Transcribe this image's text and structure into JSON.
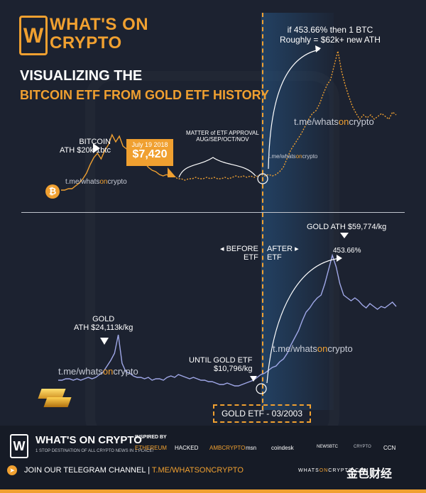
{
  "brand": {
    "logo_letter": "W",
    "name_line1": "WHAT'S ON",
    "name_line2": "CRYPTO"
  },
  "title": {
    "line1": "VISUALIZING THE",
    "line2": "BITCOIN ETF FROM GOLD ETF HISTORY"
  },
  "watermark": {
    "pre": "t.me/whats",
    "mid": "on",
    "post": "crypto"
  },
  "btc_section": {
    "ath_label_1": "BITCOIN",
    "ath_label_2": "ATH $20k/1btc",
    "price_date": "July 19 2018",
    "price_value": "$7,420",
    "approval_1": "MATTER of ETF APPROVAL",
    "approval_2": "AUG/SEP/OCT/NOV",
    "projection_1": "if 453.66% then 1 BTC",
    "projection_2": "Roughly = $62k+ new ATH",
    "icon_letter": "₿"
  },
  "gold_section": {
    "before_1": "◂ BEFORE",
    "before_2": "ETF",
    "after_1": "AFTER ▸",
    "after_2": "ETF",
    "ath_top": "GOLD ATH $59,774/kg",
    "pct": "453.66%",
    "early_ath_1": "GOLD",
    "early_ath_2": "ATH $24,113k/kg",
    "until_1": "UNTIL GOLD ETF",
    "until_2": "$10,796/kg",
    "etf_box": "GOLD ETF - 03/2003"
  },
  "footer": {
    "logo_letter": "W",
    "brand": "WHAT'S ON CRYPTO",
    "tagline": "1 STOP DESTINATION OF ALL CRYPTO NEWS IN 1 PLACE!",
    "inspired": "INSPIRED BY",
    "partners": [
      "ETHEREUM",
      "HACKED",
      "AMBCRYPTO",
      "msn",
      "coindesk",
      "NEWSBTC",
      "CRYPTO",
      "CCN"
    ],
    "join_pre": "JOIN OUR TELEGRAM CHANNEL  |  ",
    "join_link": "T.ME/WHATSONCRYPTO",
    "site_pre": "WHATS",
    "site_mid": "ON",
    "site_post": "CRYPTO.COM",
    "stamp": "金色财经"
  },
  "colors": {
    "accent": "#f0a030",
    "gold_line": "#a0a8e8",
    "background": "#1c2230"
  },
  "chart_data": [
    {
      "type": "line",
      "title": "",
      "xlabel": "",
      "ylabel": "",
      "series": [
        {
          "values": [
            2,
            2,
            3,
            3,
            5,
            7,
            10,
            14,
            20,
            25,
            28,
            24,
            30,
            34,
            41,
            36,
            40,
            33,
            31,
            30,
            27,
            25,
            22,
            21,
            18,
            16,
            15,
            13,
            12,
            13,
            11,
            12,
            10,
            10,
            9,
            10,
            10,
            11,
            10,
            10,
            11,
            10,
            11,
            10,
            10,
            11,
            10,
            11,
            12,
            11,
            12,
            11,
            12,
            11,
            12,
            13,
            12,
            13,
            12,
            13,
            15,
            18,
            24,
            30,
            34,
            38,
            42,
            47,
            52,
            56,
            58,
            63,
            70,
            76,
            80,
            90,
            100,
            86,
            76,
            68,
            61,
            56,
            52,
            55,
            53,
            55,
            52,
            54,
            56,
            54,
            52,
            57,
            55
          ],
          "style": "solid until price marker, dotted projection after"
        }
      ],
      "annotations": [
        "BITCOIN ATH $20k/1btc",
        "July 19 2018 $7,420",
        "MATTER of ETF APPROVAL AUG/SEP/OCT/NOV",
        "if 453.66% then 1 BTC Roughly = $62k+ new ATH"
      ]
    },
    {
      "type": "line",
      "title": "",
      "xlabel": "",
      "ylabel": "",
      "series": [
        {
          "values": [
            12,
            12,
            13,
            13,
            12,
            13,
            12,
            13,
            14,
            13,
            14,
            16,
            18,
            22,
            26,
            31,
            44,
            24,
            18,
            17,
            15,
            14,
            14,
            13,
            14,
            12,
            13,
            13,
            12,
            14,
            15,
            14,
            16,
            15,
            14,
            13,
            14,
            13,
            12,
            12,
            11,
            11,
            10,
            9,
            9,
            10,
            9,
            8,
            8,
            9,
            10,
            11,
            12,
            14,
            16,
            17,
            19,
            21,
            22,
            25,
            27,
            31,
            37,
            42,
            47,
            54,
            60,
            63,
            67,
            70,
            72,
            80,
            90,
            100,
            92,
            80,
            72,
            70,
            68,
            70,
            68,
            65,
            63,
            66,
            64,
            62,
            64,
            63,
            65,
            67,
            64
          ]
        }
      ],
      "annotations": [
        "GOLD ATH $24,113k/kg",
        "UNTIL GOLD ETF $10,796/kg",
        "GOLD ATH $59,774/kg",
        "453.66%",
        "GOLD ETF - 03/2003"
      ]
    }
  ]
}
